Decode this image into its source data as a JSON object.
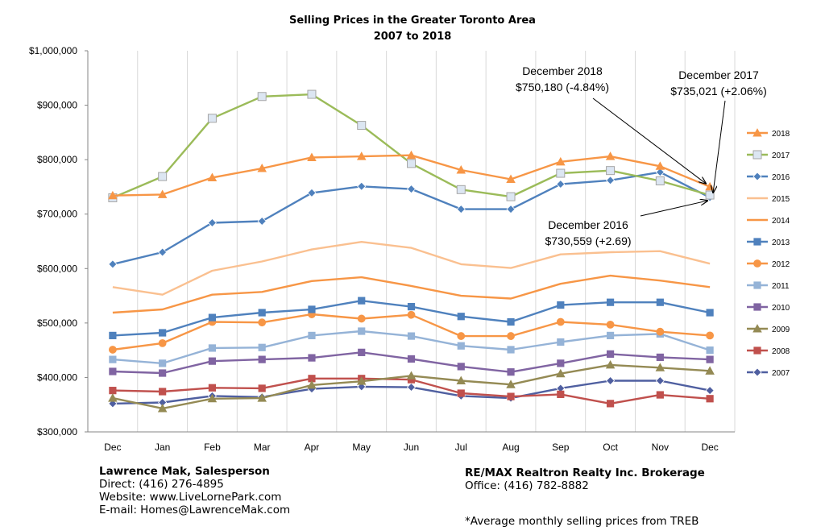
{
  "chart_data": {
    "type": "line",
    "title": "Selling Prices in the Greater Toronto Area",
    "subtitle": "2007 to 2018",
    "categories": [
      "Dec",
      "Jan",
      "Feb",
      "Mar",
      "Apr",
      "May",
      "Jun",
      "Jul",
      "Aug",
      "Sep",
      "Oct",
      "Nov",
      "Dec"
    ],
    "ylim": [
      300000,
      1000000
    ],
    "yticks": [
      300000,
      400000,
      500000,
      600000,
      700000,
      800000,
      900000,
      1000000
    ],
    "ytick_labels": [
      "$300,000",
      "$400,000",
      "$500,000",
      "$600,000",
      "$700,000",
      "$800,000",
      "$900,000",
      "$1,000,000"
    ],
    "grid": "vertical",
    "legend_position": "right",
    "series": [
      {
        "name": "2018",
        "color": "#F79646",
        "marker": "triangle",
        "values": [
          734000,
          736000,
          767000,
          784000,
          804000,
          806000,
          808000,
          781000,
          764000,
          796000,
          806000,
          788000,
          750180
        ]
      },
      {
        "name": "2017",
        "color": "#9BBB59",
        "marker": "square-light",
        "values": [
          730000,
          769000,
          876000,
          916000,
          920000,
          863000,
          793000,
          745000,
          732000,
          775000,
          780000,
          761000,
          735021
        ]
      },
      {
        "name": "2016",
        "color": "#4F81BD",
        "marker": "diamond",
        "values": [
          608000,
          630000,
          684000,
          687000,
          739000,
          751000,
          746000,
          709000,
          709000,
          755000,
          762000,
          777000,
          730559
        ]
      },
      {
        "name": "2015",
        "color": "#FAC090",
        "marker": "none",
        "values": [
          566000,
          552000,
          596000,
          613000,
          635000,
          649000,
          638000,
          608000,
          601000,
          626000,
          630000,
          632000,
          609000
        ]
      },
      {
        "name": "2014",
        "color": "#F79646",
        "marker": "none",
        "values": [
          519000,
          525000,
          552000,
          557000,
          577000,
          584000,
          568000,
          550000,
          545000,
          572000,
          587000,
          578000,
          566000
        ]
      },
      {
        "name": "2013",
        "color": "#4F81BD",
        "marker": "square",
        "values": [
          477000,
          482000,
          510000,
          519000,
          525000,
          541000,
          530000,
          512000,
          502000,
          533000,
          538000,
          538000,
          519000
        ]
      },
      {
        "name": "2012",
        "color": "#F79646",
        "marker": "circle",
        "values": [
          451000,
          463000,
          502000,
          501000,
          516000,
          508000,
          515000,
          476000,
          476000,
          502000,
          497000,
          484000,
          477000
        ]
      },
      {
        "name": "2011",
        "color": "#95B3D7",
        "marker": "square",
        "values": [
          433000,
          426000,
          454000,
          455000,
          477000,
          485000,
          476000,
          458000,
          451000,
          465000,
          477000,
          480000,
          450000
        ]
      },
      {
        "name": "2010",
        "color": "#8064A2",
        "marker": "square",
        "values": [
          411000,
          408000,
          430000,
          433000,
          436000,
          446000,
          434000,
          420000,
          410000,
          426000,
          443000,
          437000,
          433000
        ]
      },
      {
        "name": "2009",
        "color": "#948A54",
        "marker": "triangle",
        "values": [
          362000,
          343000,
          361000,
          362000,
          386000,
          393000,
          403000,
          394000,
          387000,
          407000,
          423000,
          418000,
          412000
        ]
      },
      {
        "name": "2008",
        "color": "#C0504D",
        "marker": "square",
        "values": [
          376000,
          374000,
          381000,
          380000,
          398000,
          398000,
          396000,
          371000,
          365000,
          369000,
          352000,
          368000,
          361000
        ]
      },
      {
        "name": "2007",
        "color": "#4F5FA0",
        "marker": "diamond",
        "values": [
          352000,
          354000,
          366000,
          364000,
          379000,
          383000,
          382000,
          366000,
          362000,
          380000,
          394000,
          394000,
          376000
        ]
      }
    ],
    "annotations": [
      {
        "lines": [
          "December 2018",
          "$750,180 (-4.84%)"
        ]
      },
      {
        "lines": [
          "December 2017",
          "$735,021 (+2.06%)"
        ]
      },
      {
        "lines": [
          "December 2016",
          "$730,559 (+2.69)"
        ]
      }
    ]
  },
  "footer": {
    "agent_name": "Lawrence Mak, Salesperson",
    "direct": "Direct:  (416) 276-4895",
    "website": "Website:  www.LiveLornePark.com",
    "email": "E-mail:  Homes@LawrenceMak.com",
    "brokerage": "RE/MAX Realtron Realty Inc. Brokerage",
    "office": "Office: (416) 782-8882",
    "note": "*Average monthly selling prices from TREB"
  }
}
